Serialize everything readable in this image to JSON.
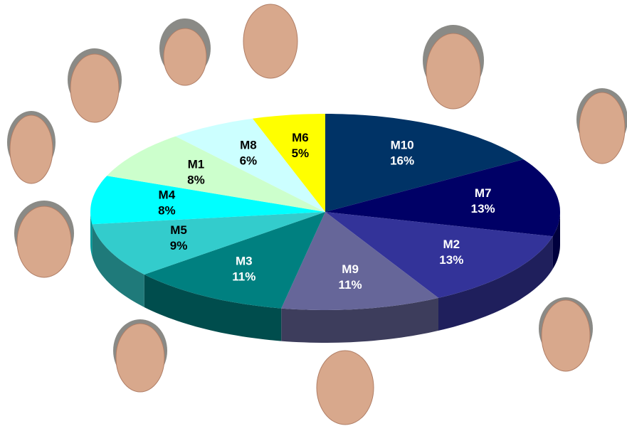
{
  "chart_data": {
    "type": "pie",
    "categories": [
      "M10",
      "M7",
      "M2",
      "M9",
      "M3",
      "M5",
      "M4",
      "M1",
      "M8",
      "M6"
    ],
    "values": [
      16,
      13,
      13,
      11,
      11,
      9,
      8,
      8,
      6,
      5
    ],
    "value_labels": [
      "16%",
      "13%",
      "13%",
      "11%",
      "11%",
      "9%",
      "8%",
      "8%",
      "6%",
      "5%"
    ],
    "colors": [
      "#003366",
      "#000066",
      "#333399",
      "#666699",
      "#008080",
      "#33cccc",
      "#00ffff",
      "#ccffcc",
      "#ccffff",
      "#ffff00"
    ],
    "label_colors": [
      "#ffffff",
      "#ffffff",
      "#ffffff",
      "#ffffff",
      "#ffffff",
      "#000000",
      "#000000",
      "#000000",
      "#000000",
      "#000000"
    ]
  }
}
